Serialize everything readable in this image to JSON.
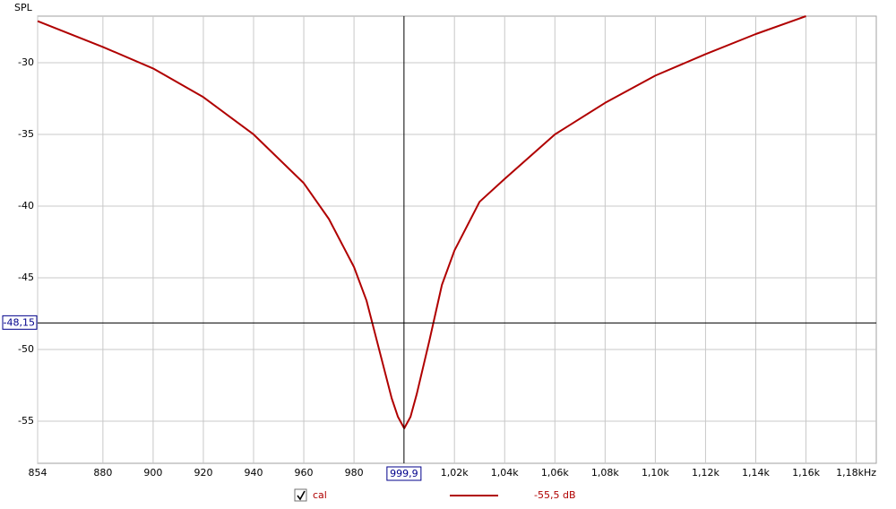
{
  "chart_data": {
    "type": "line",
    "y_label": "SPL",
    "x": [
      854,
      880,
      900,
      920,
      940,
      960,
      970,
      980,
      985,
      990,
      995,
      997.5,
      1000,
      1002.5,
      1005,
      1010,
      1015,
      1020,
      1030,
      1040,
      1060,
      1080,
      1100,
      1120,
      1140,
      1160
    ],
    "series": [
      {
        "name": "cal",
        "color": "#b00000",
        "values": [
          -27.1,
          -28.9,
          -30.4,
          -32.4,
          -35.0,
          -38.4,
          -40.9,
          -44.25,
          -46.6,
          -50.0,
          -53.4,
          -54.7,
          -55.5,
          -54.7,
          -53.1,
          -49.4,
          -45.5,
          -43.1,
          -39.7,
          -38.1,
          -35.0,
          -32.8,
          -30.9,
          -29.4,
          -28.0,
          -26.75
        ],
        "readout": {
          "value": -55.5,
          "label": "-55,5 dB"
        }
      }
    ],
    "xlim": [
      854,
      1188
    ],
    "ylim": [
      -57.94,
      -26.75
    ],
    "xticks": [
      854,
      880,
      900,
      920,
      940,
      960,
      980,
      {
        "value": 1020,
        "label": "1,02k"
      },
      {
        "value": 1040,
        "label": "1,04k"
      },
      {
        "value": 1060,
        "label": "1,06k"
      },
      {
        "value": 1080,
        "label": "1,08k"
      },
      {
        "value": 1100,
        "label": "1,10k"
      },
      {
        "value": 1120,
        "label": "1,12k"
      },
      {
        "value": 1140,
        "label": "1,14k"
      },
      {
        "value": 1160,
        "label": "1,16k"
      },
      {
        "value": 1180,
        "label": "1,18kHz"
      }
    ],
    "yticks": [
      -30,
      -35,
      -40,
      -45,
      -50,
      -55
    ],
    "grid": true,
    "cursor": {
      "x": {
        "value": 999.9,
        "label": "999,9"
      },
      "y": {
        "value": -48.15,
        "label": "-48,15"
      }
    }
  }
}
